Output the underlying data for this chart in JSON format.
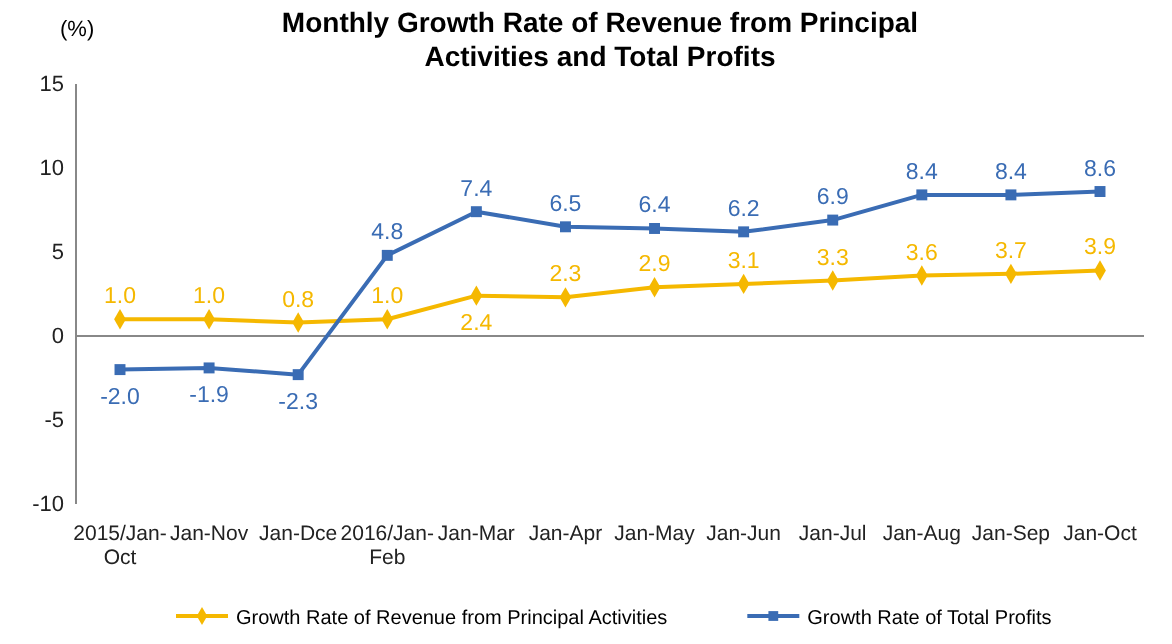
{
  "chart_data": {
    "type": "line",
    "title": "Monthly Growth Rate of Revenue from Principal Activities  and Total Profits",
    "ylabel": "(%)",
    "categories": [
      "2015/Jan-Oct",
      "Jan-Nov",
      "Jan-Dce",
      "2016/Jan-Feb",
      "Jan-Mar",
      "Jan-Apr",
      "Jan-May",
      "Jan-Jun",
      "Jan-Jul",
      "Jan-Aug",
      "Jan-Sep",
      "Jan-Oct"
    ],
    "series": [
      {
        "name": "Growth Rate of Revenue from Principal Activities",
        "color": "#f5b800",
        "marker": "diamond",
        "values": [
          1.0,
          1.0,
          0.8,
          1.0,
          2.4,
          2.3,
          2.9,
          3.1,
          3.3,
          3.6,
          3.7,
          3.9
        ],
        "value_labels": [
          "1.0",
          "1.0",
          "0.8",
          "1.0",
          "2.4",
          "2.3",
          "2.9",
          "3.1",
          "3.3",
          "3.6",
          "3.7",
          "3.9"
        ]
      },
      {
        "name": "Growth Rate of Total Profits",
        "color": "#3a6cb4",
        "marker": "square",
        "values": [
          -2.0,
          -1.9,
          -2.3,
          4.8,
          7.4,
          6.5,
          6.4,
          6.2,
          6.9,
          8.4,
          8.4,
          8.6
        ],
        "value_labels": [
          "-2.0",
          "-1.9",
          "-2.3",
          "4.8",
          "7.4",
          "6.5",
          "6.4",
          "6.2",
          "6.9",
          "8.4",
          "8.4",
          "8.6"
        ]
      }
    ],
    "ylim": [
      -10,
      15
    ],
    "yticks": [
      -10,
      -5,
      0,
      5,
      10,
      15
    ],
    "legend": "bottom",
    "line_style": "solid"
  }
}
